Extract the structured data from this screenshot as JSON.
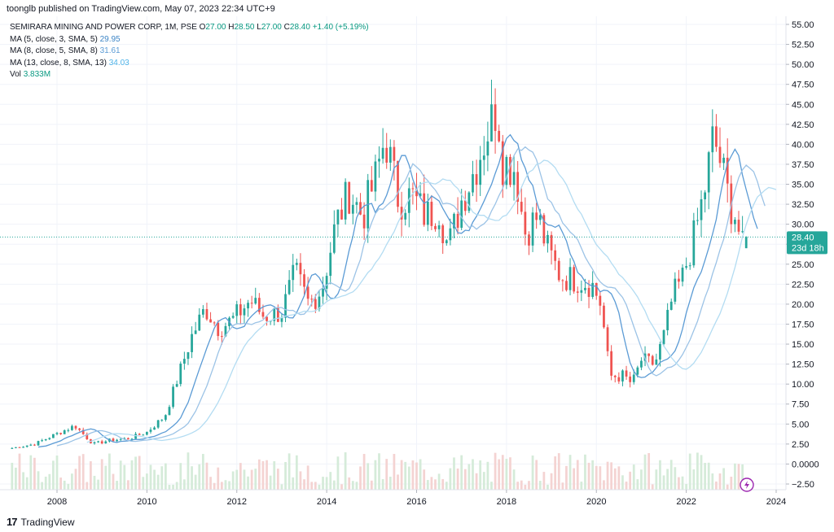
{
  "header": {
    "published": "toonglb published on TradingView.com, May 07, 2023 22:34 UTC+9"
  },
  "legend": {
    "symbol": "SEMIRARA MINING AND POWER CORP, 1M, PSE",
    "o_label": "O",
    "o": "27.00",
    "h_label": "H",
    "h": "28.50",
    "l_label": "L",
    "l": "27.00",
    "c_label": "C",
    "c": "28.40",
    "change": "+1.40 (+5.19%)",
    "ma1": "MA (5, close, 3, SMA, 5)",
    "ma1_val": "29.95",
    "ma2": "MA (8, close, 5, SMA, 8)",
    "ma2_val": "31.61",
    "ma3": "MA (13, close, 8, SMA, 13)",
    "ma3_val": "34.03",
    "vol_label": "Vol",
    "vol_val": "3.833M"
  },
  "price_tag": {
    "price": "28.40",
    "countdown": "23d 18h"
  },
  "footer": {
    "brand": "TradingView"
  },
  "colors": {
    "up": "#26a69a",
    "down": "#ef5350",
    "ma1": "#5b9bd5",
    "ma2": "#9cc3e6",
    "ma3": "#b3dcf2",
    "vol_up": "#d5ebd9",
    "vol_down": "#f4d3d2",
    "tag": "#26a69a"
  },
  "icons": {
    "replay": "lightning-icon"
  },
  "chart_data": {
    "type": "candlestick",
    "interval": "1M",
    "y_axis": {
      "min": -2.5,
      "max": 55,
      "ticks": [
        "55.00",
        "52.50",
        "50.00",
        "47.50",
        "45.00",
        "42.50",
        "40.00",
        "37.50",
        "35.00",
        "32.50",
        "30.00",
        "27.50",
        "25.00",
        "22.50",
        "20.00",
        "17.50",
        "15.00",
        "12.50",
        "10.00",
        "7.50",
        "5.00",
        "2.50",
        "0.0000",
        "−2.50"
      ],
      "position": "right"
    },
    "x_axis": {
      "ticks": [
        "2008",
        "2010",
        "2012",
        "2014",
        "2016",
        "2018",
        "2020",
        "2022",
        "2024"
      ],
      "start": 2007.0,
      "end": 2024.0
    },
    "grid": true,
    "current_price_line": 28.4,
    "anchors": [
      [
        2007.0,
        2.0
      ],
      [
        2007.5,
        2.5
      ],
      [
        2008.0,
        3.8
      ],
      [
        2008.4,
        4.8
      ],
      [
        2008.8,
        2.5
      ],
      [
        2009.2,
        3.0
      ],
      [
        2009.6,
        3.2
      ],
      [
        2010.0,
        4.0
      ],
      [
        2010.4,
        6.0
      ],
      [
        2010.7,
        11.0
      ],
      [
        2011.0,
        16.0
      ],
      [
        2011.3,
        19.5
      ],
      [
        2011.6,
        17.0
      ],
      [
        2011.9,
        18.0
      ],
      [
        2012.3,
        20.5
      ],
      [
        2012.6,
        18.5
      ],
      [
        2013.0,
        19.0
      ],
      [
        2013.3,
        24.0
      ],
      [
        2013.6,
        20.0
      ],
      [
        2013.9,
        22.0
      ],
      [
        2014.2,
        30.0
      ],
      [
        2014.5,
        34.0
      ],
      [
        2014.8,
        31.0
      ],
      [
        2015.1,
        36.0
      ],
      [
        2015.3,
        41.0
      ],
      [
        2015.6,
        33.0
      ],
      [
        2015.9,
        33.5
      ],
      [
        2016.2,
        31.0
      ],
      [
        2016.5,
        32.0
      ],
      [
        2016.7,
        27.0
      ],
      [
        2017.0,
        33.0
      ],
      [
        2017.3,
        37.0
      ],
      [
        2017.6,
        42.0
      ],
      [
        2017.8,
        45.0
      ],
      [
        2017.9,
        38.0
      ],
      [
        2018.2,
        37.0
      ],
      [
        2018.4,
        29.0
      ],
      [
        2018.7,
        31.0
      ],
      [
        2018.9,
        27.0
      ],
      [
        2019.2,
        23.5
      ],
      [
        2019.6,
        23.0
      ],
      [
        2019.9,
        22.5
      ],
      [
        2020.1,
        20.0
      ],
      [
        2020.3,
        11.0
      ],
      [
        2020.6,
        11.0
      ],
      [
        2020.8,
        10.0
      ],
      [
        2021.0,
        13.0
      ],
      [
        2021.3,
        12.5
      ],
      [
        2021.5,
        16.0
      ],
      [
        2021.7,
        21.0
      ],
      [
        2021.9,
        23.0
      ],
      [
        2022.2,
        29.0
      ],
      [
        2022.4,
        34.0
      ],
      [
        2022.6,
        41.0
      ],
      [
        2022.8,
        37.0
      ],
      [
        2022.95,
        33.0
      ],
      [
        2023.1,
        31.0
      ],
      [
        2023.25,
        27.0
      ],
      [
        2023.35,
        28.4
      ]
    ],
    "last_candle": {
      "open": 27.0,
      "high": 28.5,
      "low": 27.0,
      "close": 28.4
    },
    "series": [
      {
        "name": "MA (5, close, 3, SMA, 5)",
        "last": 29.95
      },
      {
        "name": "MA (8, close, 5, SMA, 8)",
        "last": 31.61
      },
      {
        "name": "MA (13, close, 8, SMA, 13)",
        "last": 34.03
      }
    ],
    "volume_last": "3.833M"
  }
}
